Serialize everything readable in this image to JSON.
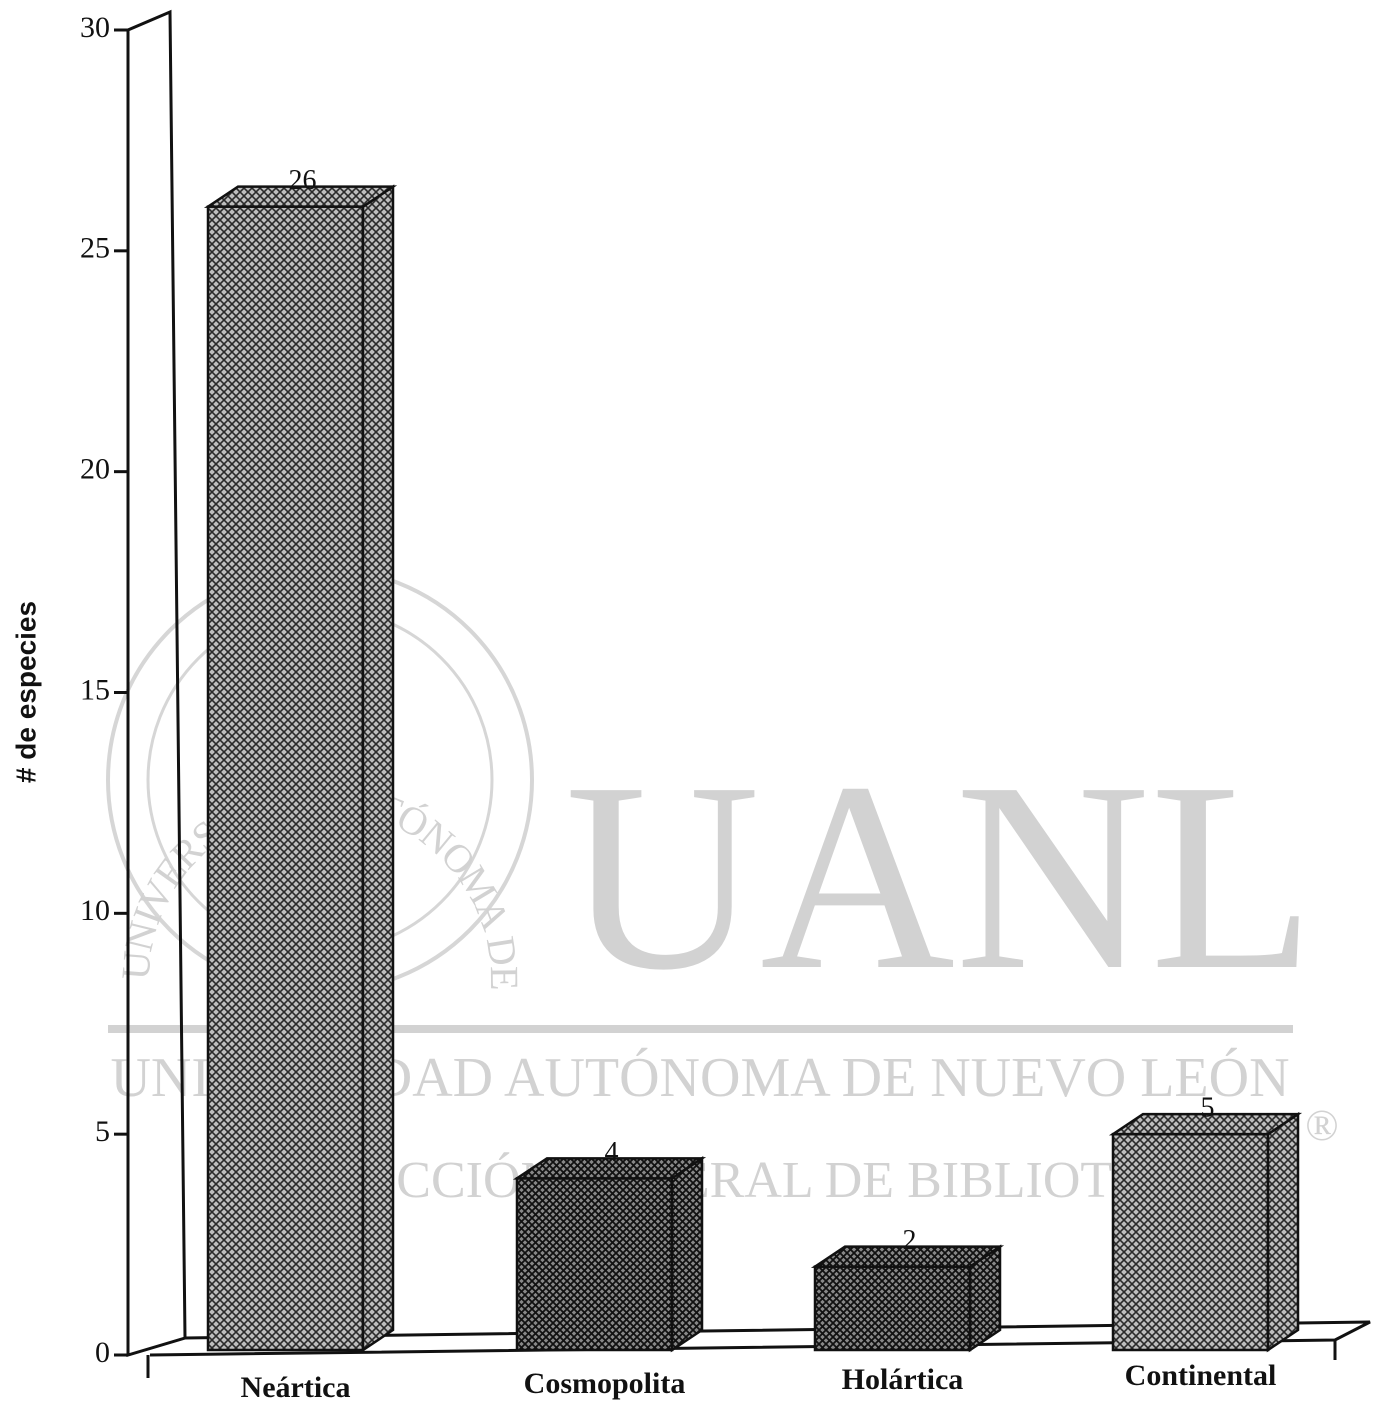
{
  "chart_data": {
    "type": "bar3d",
    "y_label": "# de especies",
    "categories": [
      "Neártica",
      "Cosmopolita",
      "Holártica",
      "Continental"
    ],
    "values": [
      26,
      4,
      2,
      5
    ],
    "colors": [
      "#bdbdbd",
      "#888888",
      "#888888",
      "#bdbdbd"
    ],
    "ylim": [
      0,
      30
    ],
    "yticks": [
      0,
      5,
      10,
      15,
      20,
      25,
      30
    ],
    "watermark": {
      "title": "UANL",
      "line1": "UNIVERSIDAD AUTÓNOMA DE NUEVO LEÓN",
      "line2": "DIRECCIÓN GENERAL DE BIBLIOTECAS",
      "mark": "®",
      "seal": "UNIVERSIDAD AUTÓNOMA DE NUEVO LEÓN"
    }
  }
}
